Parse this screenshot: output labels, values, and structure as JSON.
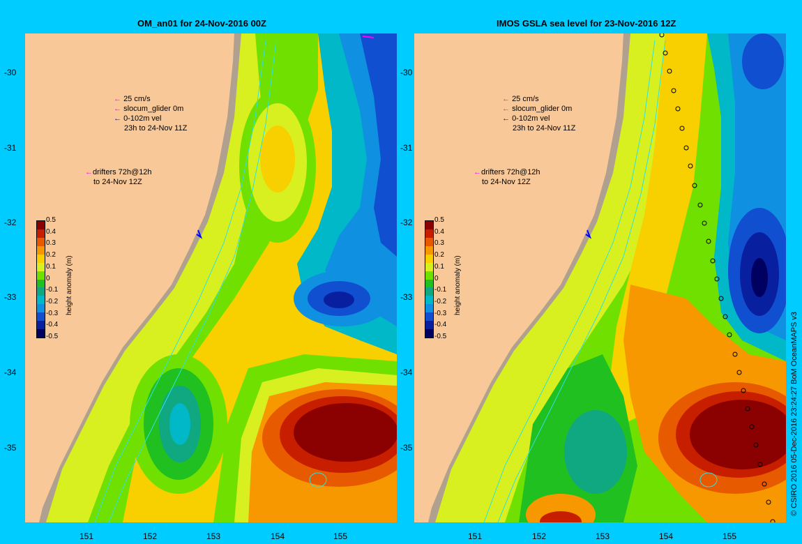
{
  "panels": [
    {
      "title": "OM_an01 for 24-Nov-2016 00Z",
      "legend_lines": [
        "25 cm/s",
        "slocum_glider 0m",
        "0-102m vel",
        "23h to 24-Nov 11Z"
      ],
      "drifter_lines": [
        "drifters 72h@12h",
        "to 24-Nov 12Z"
      ]
    },
    {
      "title": "IMOS GSLA sea level  for 23-Nov-2016 12Z",
      "legend_lines": [
        "25 cm/s",
        "slocum_glider 0m",
        "0-102m vel",
        "23h to 24-Nov 11Z"
      ],
      "drifter_lines": [
        "drifters 72h@12h",
        "to 24-Nov 12Z"
      ]
    }
  ],
  "y_ticks": [
    "-30",
    "-31",
    "-32",
    "-33",
    "-34",
    "-35"
  ],
  "x_ticks": [
    "151",
    "152",
    "153",
    "154",
    "155"
  ],
  "colorbar": {
    "title": "height anomaly (m)",
    "labels": [
      "0.5",
      "0.4",
      "0.3",
      "0.2",
      "0.1",
      "0",
      "-0.1",
      "-0.2",
      "-0.3",
      "-0.4",
      "-0.5"
    ],
    "colors": [
      "#8b0000",
      "#c81e00",
      "#e85a00",
      "#f89800",
      "#f8d000",
      "#d8f020",
      "#70e000",
      "#20c020",
      "#10a880",
      "#00b8c8",
      "#1090e0",
      "#1050d0",
      "#0820a0",
      "#000060"
    ]
  },
  "copyright": "© CSIRO 2016  05-Dec-2016 23:24:27 BoM OceanMAPS v3",
  "colors": {
    "land": "#f8c898",
    "background": "#00ccff",
    "glider": "#ff00ff",
    "vel": "#0000ff"
  }
}
